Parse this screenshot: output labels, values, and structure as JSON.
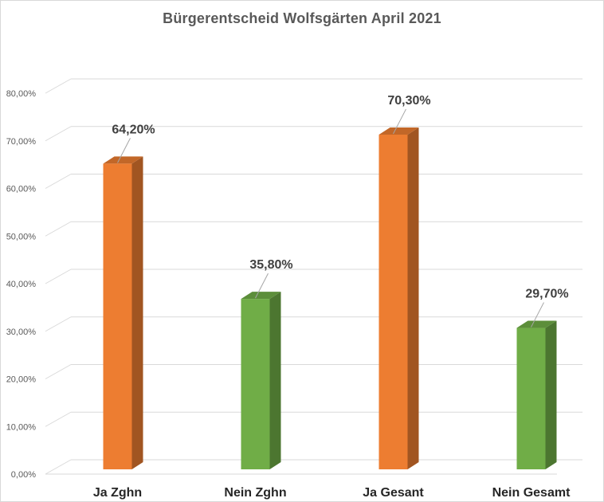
{
  "chart_data": {
    "type": "bar",
    "title": "Bürgerentscheid Wolfsgärten April 2021",
    "categories": [
      "Ja Zghn",
      "Nein Zghn",
      "Ja Gesant",
      "Nein Gesamt"
    ],
    "values": [
      64.2,
      35.8,
      70.3,
      29.7
    ],
    "data_labels": [
      "64,20%",
      "35,80%",
      "70,30%",
      "29,70%"
    ],
    "colors": [
      "#ed7d31",
      "#70ad47",
      "#ed7d31",
      "#70ad47"
    ],
    "ylim": [
      0,
      80
    ],
    "yticks": [
      0,
      10,
      20,
      30,
      40,
      50,
      60,
      70,
      80
    ],
    "ytick_labels": [
      "0,00%",
      "10,00%",
      "20,00%",
      "30,00%",
      "40,00%",
      "50,00%",
      "60,00%",
      "70,00%",
      "80,00%"
    ],
    "xlabel": "",
    "ylabel": "",
    "grid": true,
    "legend": false,
    "style": "3d-bar"
  }
}
